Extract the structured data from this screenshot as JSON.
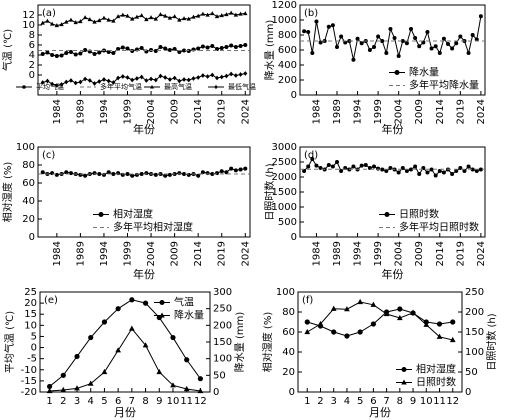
{
  "chart_data": [
    {
      "type": "line",
      "panel_label": "(a)",
      "ylabel": "气温 (℃)",
      "xlabel": "年份",
      "x": [
        1981,
        1982,
        1983,
        1984,
        1985,
        1986,
        1987,
        1988,
        1989,
        1990,
        1991,
        1992,
        1993,
        1994,
        1995,
        1996,
        1997,
        1998,
        1999,
        2000,
        2001,
        2002,
        2003,
        2004,
        2005,
        2006,
        2007,
        2008,
        2009,
        2010,
        2011,
        2012,
        2013,
        2014,
        2015,
        2016,
        2017,
        2018,
        2019,
        2020,
        2021,
        2022,
        2023,
        2024
      ],
      "xlim": [
        1980,
        2025
      ],
      "xticks": [
        1984,
        1989,
        1994,
        1999,
        2004,
        2009,
        2014,
        2019,
        2024
      ],
      "xtick_rotation": 90,
      "ylim": [
        -4,
        14
      ],
      "yticks": [
        0,
        2,
        4,
        6,
        8,
        10,
        12
      ],
      "legend": "lower-center",
      "legend_columns": 4,
      "series": [
        {
          "name": "平均气温",
          "color": "#000000",
          "marker": "circle",
          "values": [
            4.2,
            4.5,
            4.0,
            3.8,
            3.9,
            4.4,
            4.6,
            4.1,
            4.3,
            5.0,
            4.7,
            4.2,
            4.5,
            4.9,
            4.6,
            4.4,
            5.2,
            5.5,
            5.3,
            4.8,
            5.1,
            5.4,
            4.7,
            5.0,
            4.8,
            5.6,
            5.3,
            5.0,
            5.2,
            4.6,
            4.9,
            4.8,
            5.1,
            5.3,
            5.7,
            5.5,
            5.8,
            5.2,
            5.4,
            5.6,
            5.9,
            5.6,
            5.8,
            6.0
          ]
        },
        {
          "name": "多年平均气温",
          "type": "hline",
          "color": "#777777",
          "value": 4.9
        },
        {
          "name": "最高气温",
          "color": "#000000",
          "marker": "triangle",
          "values": [
            10.4,
            10.8,
            10.2,
            9.9,
            10.1,
            10.6,
            11.0,
            10.5,
            10.7,
            11.5,
            11.1,
            10.6,
            10.9,
            11.4,
            11.0,
            10.8,
            11.7,
            12.0,
            11.8,
            11.2,
            11.6,
            11.9,
            11.1,
            11.5,
            11.2,
            12.1,
            11.8,
            11.4,
            11.7,
            11.0,
            11.3,
            11.2,
            11.6,
            11.8,
            12.2,
            12.0,
            12.3,
            11.7,
            11.9,
            12.1,
            12.4,
            12.0,
            12.2,
            12.3
          ]
        },
        {
          "name": "最低气温",
          "color": "#000000",
          "marker": "diamond",
          "values": [
            -1.5,
            -1.2,
            -1.8,
            -2.1,
            -1.9,
            -1.4,
            -1.1,
            -1.6,
            -1.4,
            -0.8,
            -1.1,
            -1.7,
            -1.3,
            -0.9,
            -1.2,
            -1.5,
            -0.6,
            -0.3,
            -0.5,
            -1.0,
            -0.7,
            -0.4,
            -1.1,
            -0.8,
            -1.0,
            -0.2,
            -0.5,
            -0.9,
            -0.6,
            -1.2,
            -0.9,
            -1.0,
            -0.7,
            -0.5,
            -0.1,
            -0.3,
            0.0,
            -0.6,
            -0.4,
            -0.2,
            0.2,
            -0.1,
            0.1,
            0.3
          ]
        }
      ]
    },
    {
      "type": "line",
      "panel_label": "(b)",
      "ylabel": "降水量 (mm)",
      "xlabel": "年份",
      "x": [
        1981,
        1982,
        1983,
        1984,
        1985,
        1986,
        1987,
        1988,
        1989,
        1990,
        1991,
        1992,
        1993,
        1994,
        1995,
        1996,
        1997,
        1998,
        1999,
        2000,
        2001,
        2002,
        2003,
        2004,
        2005,
        2006,
        2007,
        2008,
        2009,
        2010,
        2011,
        2012,
        2013,
        2014,
        2015,
        2016,
        2017,
        2018,
        2019,
        2020,
        2021,
        2022,
        2023,
        2024
      ],
      "xlim": [
        1980,
        2025
      ],
      "xticks": [
        1984,
        1989,
        1994,
        1999,
        2004,
        2009,
        2014,
        2019,
        2024
      ],
      "xtick_rotation": 90,
      "ylim": [
        0,
        1200
      ],
      "yticks": [
        0,
        200,
        400,
        600,
        800,
        1000,
        1200
      ],
      "legend": "lower-right",
      "legend_columns": 1,
      "series": [
        {
          "name": "降水量",
          "color": "#000000",
          "marker": "circle",
          "values": [
            850,
            840,
            560,
            980,
            700,
            720,
            910,
            930,
            640,
            780,
            700,
            720,
            470,
            750,
            690,
            720,
            600,
            640,
            780,
            720,
            560,
            880,
            760,
            520,
            720,
            690,
            880,
            760,
            650,
            700,
            840,
            620,
            650,
            560,
            750,
            680,
            620,
            690,
            780,
            720,
            560,
            800,
            740,
            1050
          ]
        },
        {
          "name": "多年平均降水量",
          "type": "hline",
          "color": "#777777",
          "value": 720
        }
      ]
    },
    {
      "type": "line",
      "panel_label": "(c)",
      "ylabel": "相对湿度 (%)",
      "xlabel": "年份",
      "x": [
        1981,
        1982,
        1983,
        1984,
        1985,
        1986,
        1987,
        1988,
        1989,
        1990,
        1991,
        1992,
        1993,
        1994,
        1995,
        1996,
        1997,
        1998,
        1999,
        2000,
        2001,
        2002,
        2003,
        2004,
        2005,
        2006,
        2007,
        2008,
        2009,
        2010,
        2011,
        2012,
        2013,
        2014,
        2015,
        2016,
        2017,
        2018,
        2019,
        2020,
        2021,
        2022,
        2023,
        2024
      ],
      "xlim": [
        1980,
        2025
      ],
      "xticks": [
        1984,
        1989,
        1994,
        1999,
        2004,
        2009,
        2014,
        2019,
        2024
      ],
      "xtick_rotation": 90,
      "ylim": [
        0,
        100
      ],
      "yticks": [
        0,
        20,
        40,
        60,
        80,
        100
      ],
      "legend": "lower-center",
      "legend_columns": 1,
      "series": [
        {
          "name": "相对湿度",
          "color": "#000000",
          "marker": "circle",
          "values": [
            72,
            70,
            71,
            69,
            70,
            72,
            71,
            70,
            69,
            68,
            70,
            71,
            70,
            69,
            72,
            70,
            71,
            69,
            70,
            68,
            69,
            70,
            71,
            70,
            69,
            70,
            68,
            69,
            70,
            71,
            70,
            69,
            70,
            68,
            72,
            71,
            70,
            71,
            73,
            72,
            76,
            74,
            75,
            76
          ]
        },
        {
          "name": "多年平均相对湿度",
          "type": "hline",
          "color": "#777777",
          "value": 70
        }
      ]
    },
    {
      "type": "line",
      "panel_label": "(d)",
      "ylabel": "日照时数 (h)",
      "xlabel": "年份",
      "x": [
        1981,
        1982,
        1983,
        1984,
        1985,
        1986,
        1987,
        1988,
        1989,
        1990,
        1991,
        1992,
        1993,
        1994,
        1995,
        1996,
        1997,
        1998,
        1999,
        2000,
        2001,
        2002,
        2003,
        2004,
        2005,
        2006,
        2007,
        2008,
        2009,
        2010,
        2011,
        2012,
        2013,
        2014,
        2015,
        2016,
        2017,
        2018,
        2019,
        2020,
        2021,
        2022,
        2023,
        2024
      ],
      "xlim": [
        1980,
        2025
      ],
      "xticks": [
        1984,
        1989,
        1994,
        1999,
        2004,
        2009,
        2014,
        2019,
        2024
      ],
      "xtick_rotation": 90,
      "ylim": [
        0,
        3000
      ],
      "yticks": [
        0,
        500,
        1000,
        1500,
        2000,
        2500,
        3000
      ],
      "legend": "lower-right",
      "legend_columns": 1,
      "series": [
        {
          "name": "日照时数",
          "color": "#000000",
          "marker": "circle",
          "values": [
            2200,
            2350,
            2600,
            2380,
            2300,
            2250,
            2400,
            2350,
            2500,
            2200,
            2300,
            2250,
            2350,
            2250,
            2380,
            2400,
            2300,
            2350,
            2280,
            2250,
            2200,
            2300,
            2250,
            2150,
            2300,
            2200,
            2250,
            2350,
            2100,
            2300,
            2150,
            2250,
            2050,
            2200,
            2150,
            2250,
            2100,
            2200,
            2300,
            2200,
            2350,
            2250,
            2200,
            2250
          ]
        },
        {
          "name": "多年平均日照时数",
          "type": "hline",
          "color": "#777777",
          "value": 2260
        }
      ]
    },
    {
      "type": "line",
      "panel_label": "(e)",
      "ylabel": "平均气温 (℃)",
      "y2label": "降水量 (mm)",
      "xlabel": "月份",
      "x": [
        1,
        2,
        3,
        4,
        5,
        6,
        7,
        8,
        9,
        10,
        11,
        12
      ],
      "xlim": [
        0.3,
        12.7
      ],
      "xticks": [
        1,
        2,
        3,
        4,
        5,
        6,
        7,
        8,
        9,
        10,
        11,
        12
      ],
      "ylim": [
        -20,
        25
      ],
      "yticks": [
        -20,
        -15,
        -10,
        -5,
        0,
        5,
        10,
        15,
        20,
        25
      ],
      "y2lim": [
        0,
        300
      ],
      "y2ticks": [
        0,
        50,
        100,
        150,
        200,
        250,
        300
      ],
      "legend": "upper-right",
      "legend_columns": 1,
      "series": [
        {
          "name": "气温",
          "color": "#000000",
          "marker": "circle",
          "values": [
            -17.5,
            -12.5,
            -4.0,
            4.5,
            11.5,
            17.5,
            21.5,
            20.0,
            13.5,
            4.5,
            -5.5,
            -14.0
          ]
        },
        {
          "name": "降水量",
          "color": "#000000",
          "marker": "triangle",
          "axis": "y2",
          "values": [
            3,
            6,
            11,
            25,
            60,
            125,
            190,
            140,
            60,
            20,
            9,
            3
          ]
        }
      ]
    },
    {
      "type": "line",
      "panel_label": "(f)",
      "ylabel": "相对湿度 (%)",
      "y2label": "日照时数 (h)",
      "xlabel": "月份",
      "x": [
        1,
        2,
        3,
        4,
        5,
        6,
        7,
        8,
        9,
        10,
        11,
        12
      ],
      "xlim": [
        0.3,
        12.7
      ],
      "xticks": [
        1,
        2,
        3,
        4,
        5,
        6,
        7,
        8,
        9,
        10,
        11,
        12
      ],
      "ylim": [
        0,
        100
      ],
      "yticks": [
        0,
        20,
        40,
        60,
        80,
        100
      ],
      "y2lim": [
        0,
        250
      ],
      "y2ticks": [
        0,
        50,
        100,
        150,
        200,
        250
      ],
      "legend": "lower-right",
      "legend_columns": 1,
      "series": [
        {
          "name": "相对湿度",
          "color": "#000000",
          "marker": "circle",
          "values": [
            70,
            66,
            60,
            56,
            60,
            68,
            80,
            83,
            79,
            70,
            68,
            70
          ]
        },
        {
          "name": "日照时数",
          "color": "#000000",
          "marker": "triangle",
          "axis": "y2",
          "values": [
            150,
            170,
            208,
            207,
            225,
            218,
            195,
            185,
            198,
            168,
            138,
            130
          ]
        }
      ]
    }
  ]
}
